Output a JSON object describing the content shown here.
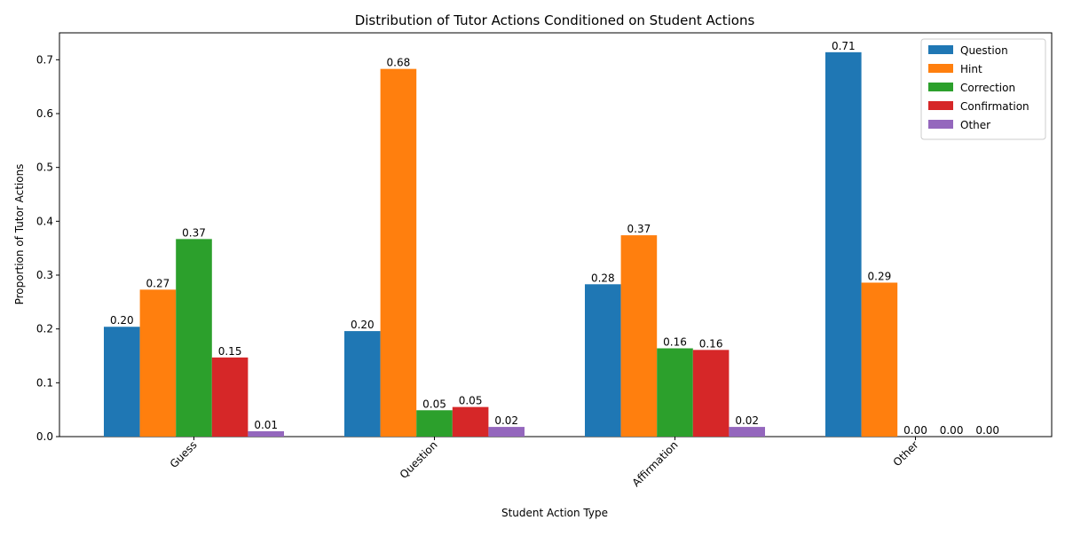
{
  "chart_data": {
    "type": "bar",
    "title": "Distribution of Tutor Actions Conditioned on Student Actions",
    "xlabel": "Student Action Type",
    "ylabel": "Proportion of Tutor Actions",
    "categories": [
      "Guess",
      "Question",
      "Affirmation",
      "Other"
    ],
    "series": [
      {
        "name": "Question",
        "color": "#1f77b4",
        "values": [
          0.204,
          0.196,
          0.283,
          0.714
        ],
        "labels": [
          "0.20",
          "0.20",
          "0.28",
          "0.71"
        ]
      },
      {
        "name": "Hint",
        "color": "#ff7f0e",
        "values": [
          0.273,
          0.683,
          0.374,
          0.286
        ],
        "labels": [
          "0.27",
          "0.68",
          "0.37",
          "0.29"
        ]
      },
      {
        "name": "Correction",
        "color": "#2ca02c",
        "values": [
          0.367,
          0.049,
          0.164,
          0.0
        ],
        "labels": [
          "0.37",
          "0.05",
          "0.16",
          "0.00"
        ]
      },
      {
        "name": "Confirmation",
        "color": "#d62728",
        "values": [
          0.147,
          0.055,
          0.161,
          0.0
        ],
        "labels": [
          "0.15",
          "0.05",
          "0.16",
          "0.00"
        ]
      },
      {
        "name": "Other",
        "color": "#9467bd",
        "values": [
          0.01,
          0.018,
          0.018,
          0.0
        ],
        "labels": [
          "0.01",
          "0.02",
          "0.02",
          "0.00"
        ]
      }
    ],
    "ylim": [
      0,
      0.75
    ],
    "yticks": [
      0.0,
      0.1,
      0.2,
      0.3,
      0.4,
      0.5,
      0.6,
      0.7
    ],
    "ytick_labels": [
      "0.0",
      "0.1",
      "0.2",
      "0.3",
      "0.4",
      "0.5",
      "0.6",
      "0.7"
    ],
    "xtick_rotation_deg": 45,
    "legend_position": "top-right",
    "grid": false
  }
}
